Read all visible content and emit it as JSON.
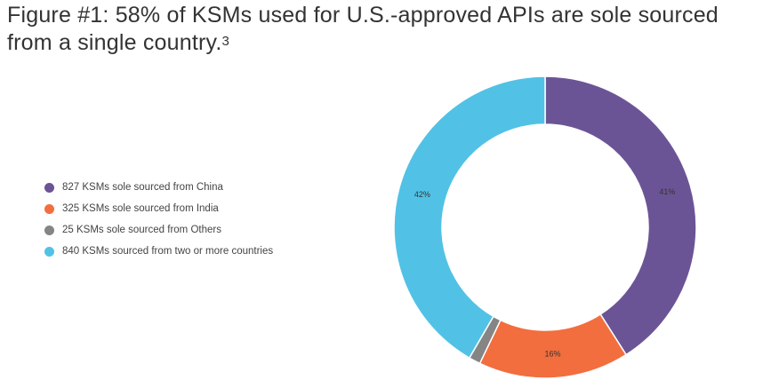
{
  "figure": {
    "title": "Figure #1: 58% of KSMs used for U.S.-approved APIs are sole sourced from a single country.",
    "title_sup": "3"
  },
  "chart_data": {
    "type": "pie",
    "donut": true,
    "legend_position": "left",
    "series": [
      {
        "name": "827 KSMs sole sourced from China",
        "value": 827,
        "label": "41%",
        "color": "#6b5496"
      },
      {
        "name": "325 KSMs sole sourced from India",
        "value": 325,
        "label": "16%",
        "color": "#f26e3e"
      },
      {
        "name": "25 KSMs sole sourced from Others",
        "value": 25,
        "label": "",
        "color": "#858585"
      },
      {
        "name": "840 KSMs sourced from two or more countries",
        "value": 840,
        "label": "42%",
        "color": "#51c2e5"
      }
    ]
  }
}
